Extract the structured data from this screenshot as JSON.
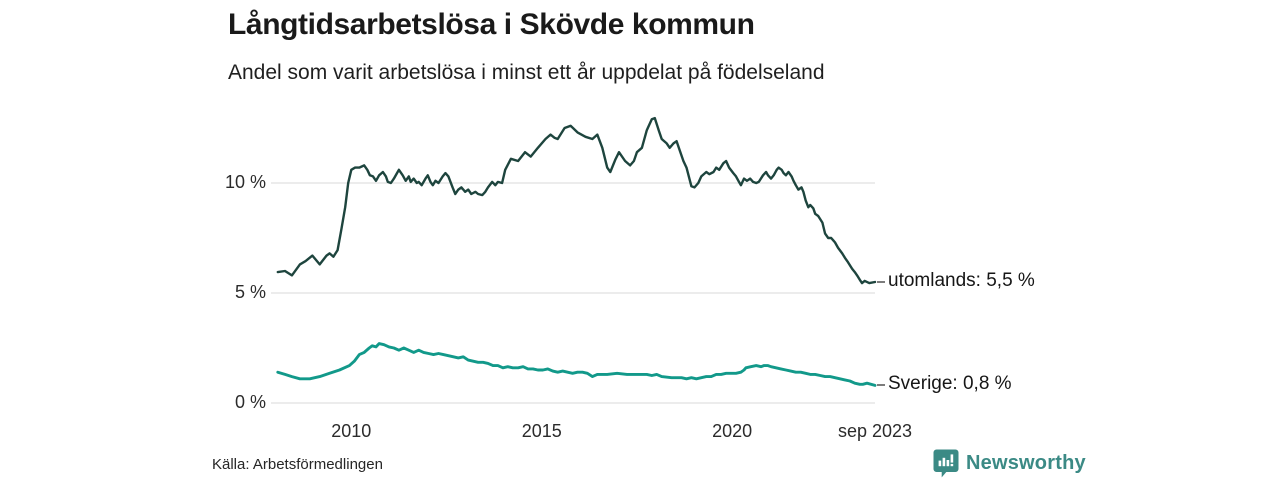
{
  "chart_data": {
    "type": "line",
    "title": "Långtidsarbetslösa i Skövde kommun",
    "subtitle": "Andel som varit arbetslösa i minst ett år uppdelat på födelseland",
    "source": "Källa: Arbetsförmedlingen",
    "unit": "%",
    "grid": "horizontal-only",
    "legend_position": "end-of-line",
    "xlim": [
      2008.05,
      2023.75
    ],
    "ylim": [
      0,
      13
    ],
    "x_ticks": [
      {
        "value": 2010,
        "label": "2010"
      },
      {
        "value": 2015,
        "label": "2015"
      },
      {
        "value": 2020,
        "label": "2020"
      },
      {
        "value": 2023.75,
        "label": "sep 2023"
      }
    ],
    "y_ticks": [
      {
        "value": 0,
        "label": "0 %"
      },
      {
        "value": 5,
        "label": "5 %"
      },
      {
        "value": 10,
        "label": "10 %"
      }
    ],
    "series": [
      {
        "name": "utomlands",
        "end_label": "utomlands: 5,5 %",
        "last_value": "5,5 %",
        "color": "#1e453e",
        "points": [
          [
            2008.07,
            5.95
          ],
          [
            2008.26,
            6.0
          ],
          [
            2008.44,
            5.8
          ],
          [
            2008.65,
            6.3
          ],
          [
            2008.8,
            6.45
          ],
          [
            2008.98,
            6.7
          ],
          [
            2009.17,
            6.3
          ],
          [
            2009.35,
            6.7
          ],
          [
            2009.43,
            6.8
          ],
          [
            2009.53,
            6.65
          ],
          [
            2009.64,
            6.95
          ],
          [
            2009.74,
            7.9
          ],
          [
            2009.84,
            8.9
          ],
          [
            2009.92,
            10.0
          ],
          [
            2010.0,
            10.6
          ],
          [
            2010.1,
            10.7
          ],
          [
            2010.21,
            10.7
          ],
          [
            2010.34,
            10.8
          ],
          [
            2010.42,
            10.6
          ],
          [
            2010.49,
            10.35
          ],
          [
            2010.57,
            10.3
          ],
          [
            2010.65,
            10.1
          ],
          [
            2010.73,
            10.35
          ],
          [
            2010.83,
            10.5
          ],
          [
            2010.91,
            10.3
          ],
          [
            2010.96,
            10.05
          ],
          [
            2011.04,
            10.0
          ],
          [
            2011.12,
            10.2
          ],
          [
            2011.2,
            10.45
          ],
          [
            2011.25,
            10.6
          ],
          [
            2011.35,
            10.35
          ],
          [
            2011.43,
            10.1
          ],
          [
            2011.51,
            10.3
          ],
          [
            2011.56,
            10.05
          ],
          [
            2011.64,
            10.2
          ],
          [
            2011.72,
            10.0
          ],
          [
            2011.77,
            10.05
          ],
          [
            2011.85,
            9.9
          ],
          [
            2011.95,
            10.2
          ],
          [
            2012.01,
            10.35
          ],
          [
            2012.08,
            10.05
          ],
          [
            2012.14,
            9.9
          ],
          [
            2012.21,
            10.1
          ],
          [
            2012.29,
            10.0
          ],
          [
            2012.4,
            10.3
          ],
          [
            2012.47,
            10.45
          ],
          [
            2012.55,
            10.3
          ],
          [
            2012.66,
            9.8
          ],
          [
            2012.73,
            9.5
          ],
          [
            2012.81,
            9.7
          ],
          [
            2012.89,
            9.8
          ],
          [
            2012.99,
            9.6
          ],
          [
            2013.07,
            9.7
          ],
          [
            2013.15,
            9.5
          ],
          [
            2013.26,
            9.6
          ],
          [
            2013.33,
            9.5
          ],
          [
            2013.44,
            9.45
          ],
          [
            2013.52,
            9.6
          ],
          [
            2013.59,
            9.8
          ],
          [
            2013.7,
            10.05
          ],
          [
            2013.78,
            9.9
          ],
          [
            2013.85,
            10.05
          ],
          [
            2013.96,
            10.0
          ],
          [
            2014.04,
            10.6
          ],
          [
            2014.19,
            11.1
          ],
          [
            2014.38,
            11.0
          ],
          [
            2014.56,
            11.4
          ],
          [
            2014.71,
            11.2
          ],
          [
            2014.9,
            11.6
          ],
          [
            2015.1,
            12.0
          ],
          [
            2015.23,
            12.2
          ],
          [
            2015.34,
            12.05
          ],
          [
            2015.42,
            12.0
          ],
          [
            2015.6,
            12.5
          ],
          [
            2015.76,
            12.6
          ],
          [
            2015.94,
            12.3
          ],
          [
            2016.15,
            12.1
          ],
          [
            2016.33,
            12.0
          ],
          [
            2016.46,
            12.2
          ],
          [
            2016.59,
            11.6
          ],
          [
            2016.72,
            10.7
          ],
          [
            2016.8,
            10.5
          ],
          [
            2016.93,
            11.05
          ],
          [
            2017.03,
            11.4
          ],
          [
            2017.19,
            11.0
          ],
          [
            2017.32,
            10.8
          ],
          [
            2017.42,
            11.0
          ],
          [
            2017.5,
            11.4
          ],
          [
            2017.63,
            11.6
          ],
          [
            2017.76,
            12.4
          ],
          [
            2017.89,
            12.9
          ],
          [
            2017.97,
            12.95
          ],
          [
            2018.07,
            12.4
          ],
          [
            2018.15,
            12.0
          ],
          [
            2018.28,
            11.8
          ],
          [
            2018.36,
            11.6
          ],
          [
            2018.46,
            11.8
          ],
          [
            2018.54,
            11.9
          ],
          [
            2018.62,
            11.5
          ],
          [
            2018.72,
            11.0
          ],
          [
            2018.8,
            10.7
          ],
          [
            2018.93,
            9.85
          ],
          [
            2019.01,
            9.8
          ],
          [
            2019.11,
            10.0
          ],
          [
            2019.19,
            10.3
          ],
          [
            2019.32,
            10.5
          ],
          [
            2019.4,
            10.4
          ],
          [
            2019.51,
            10.5
          ],
          [
            2019.58,
            10.7
          ],
          [
            2019.66,
            10.6
          ],
          [
            2019.77,
            10.9
          ],
          [
            2019.84,
            11.0
          ],
          [
            2019.92,
            10.7
          ],
          [
            2020.03,
            10.45
          ],
          [
            2020.1,
            10.3
          ],
          [
            2020.18,
            10.05
          ],
          [
            2020.23,
            9.9
          ],
          [
            2020.31,
            10.2
          ],
          [
            2020.39,
            10.1
          ],
          [
            2020.47,
            10.2
          ],
          [
            2020.55,
            10.05
          ],
          [
            2020.63,
            10.0
          ],
          [
            2020.7,
            10.05
          ],
          [
            2020.81,
            10.35
          ],
          [
            2020.89,
            10.5
          ],
          [
            2020.94,
            10.35
          ],
          [
            2021.02,
            10.2
          ],
          [
            2021.09,
            10.35
          ],
          [
            2021.17,
            10.6
          ],
          [
            2021.22,
            10.7
          ],
          [
            2021.3,
            10.6
          ],
          [
            2021.35,
            10.45
          ],
          [
            2021.41,
            10.35
          ],
          [
            2021.48,
            10.5
          ],
          [
            2021.56,
            10.3
          ],
          [
            2021.61,
            10.1
          ],
          [
            2021.67,
            9.9
          ],
          [
            2021.74,
            9.7
          ],
          [
            2021.82,
            9.8
          ],
          [
            2021.87,
            9.6
          ],
          [
            2021.93,
            9.2
          ],
          [
            2022.0,
            8.9
          ],
          [
            2022.05,
            9.0
          ],
          [
            2022.13,
            8.85
          ],
          [
            2022.18,
            8.6
          ],
          [
            2022.26,
            8.5
          ],
          [
            2022.37,
            8.2
          ],
          [
            2022.44,
            7.7
          ],
          [
            2022.52,
            7.5
          ],
          [
            2022.6,
            7.5
          ],
          [
            2022.65,
            7.4
          ],
          [
            2022.7,
            7.3
          ],
          [
            2022.78,
            7.05
          ],
          [
            2022.89,
            6.8
          ],
          [
            2022.96,
            6.6
          ],
          [
            2023.04,
            6.4
          ],
          [
            2023.15,
            6.1
          ],
          [
            2023.22,
            5.95
          ],
          [
            2023.28,
            5.8
          ],
          [
            2023.35,
            5.6
          ],
          [
            2023.41,
            5.45
          ],
          [
            2023.48,
            5.55
          ],
          [
            2023.6,
            5.45
          ],
          [
            2023.75,
            5.5
          ]
        ]
      },
      {
        "name": "Sverige",
        "end_label": "Sverige: 0,8 %",
        "last_value": "0,8 %",
        "color": "#12998a",
        "points": [
          [
            2008.07,
            1.4
          ],
          [
            2008.26,
            1.3
          ],
          [
            2008.44,
            1.2
          ],
          [
            2008.65,
            1.1
          ],
          [
            2008.91,
            1.1
          ],
          [
            2009.17,
            1.2
          ],
          [
            2009.43,
            1.35
          ],
          [
            2009.69,
            1.5
          ],
          [
            2009.95,
            1.7
          ],
          [
            2010.08,
            1.9
          ],
          [
            2010.21,
            2.2
          ],
          [
            2010.34,
            2.3
          ],
          [
            2010.47,
            2.5
          ],
          [
            2010.55,
            2.6
          ],
          [
            2010.65,
            2.55
          ],
          [
            2010.73,
            2.7
          ],
          [
            2010.86,
            2.65
          ],
          [
            2010.99,
            2.55
          ],
          [
            2011.12,
            2.5
          ],
          [
            2011.25,
            2.4
          ],
          [
            2011.38,
            2.5
          ],
          [
            2011.51,
            2.4
          ],
          [
            2011.64,
            2.3
          ],
          [
            2011.77,
            2.4
          ],
          [
            2011.9,
            2.3
          ],
          [
            2012.03,
            2.25
          ],
          [
            2012.16,
            2.2
          ],
          [
            2012.29,
            2.25
          ],
          [
            2012.42,
            2.2
          ],
          [
            2012.55,
            2.15
          ],
          [
            2012.68,
            2.1
          ],
          [
            2012.81,
            2.05
          ],
          [
            2012.94,
            2.1
          ],
          [
            2013.07,
            1.95
          ],
          [
            2013.2,
            1.9
          ],
          [
            2013.33,
            1.85
          ],
          [
            2013.46,
            1.85
          ],
          [
            2013.59,
            1.8
          ],
          [
            2013.72,
            1.7
          ],
          [
            2013.85,
            1.7
          ],
          [
            2013.98,
            1.6
          ],
          [
            2014.11,
            1.65
          ],
          [
            2014.24,
            1.6
          ],
          [
            2014.38,
            1.6
          ],
          [
            2014.51,
            1.65
          ],
          [
            2014.64,
            1.55
          ],
          [
            2014.77,
            1.55
          ],
          [
            2014.9,
            1.5
          ],
          [
            2015.03,
            1.5
          ],
          [
            2015.16,
            1.55
          ],
          [
            2015.29,
            1.45
          ],
          [
            2015.42,
            1.4
          ],
          [
            2015.55,
            1.45
          ],
          [
            2015.68,
            1.4
          ],
          [
            2015.81,
            1.35
          ],
          [
            2015.94,
            1.4
          ],
          [
            2016.07,
            1.4
          ],
          [
            2016.2,
            1.35
          ],
          [
            2016.33,
            1.2
          ],
          [
            2016.46,
            1.3
          ],
          [
            2016.72,
            1.3
          ],
          [
            2016.98,
            1.35
          ],
          [
            2017.24,
            1.3
          ],
          [
            2017.5,
            1.3
          ],
          [
            2017.76,
            1.3
          ],
          [
            2017.89,
            1.25
          ],
          [
            2018.02,
            1.3
          ],
          [
            2018.15,
            1.2
          ],
          [
            2018.41,
            1.15
          ],
          [
            2018.67,
            1.15
          ],
          [
            2018.8,
            1.1
          ],
          [
            2018.93,
            1.15
          ],
          [
            2019.06,
            1.1
          ],
          [
            2019.19,
            1.15
          ],
          [
            2019.32,
            1.2
          ],
          [
            2019.45,
            1.2
          ],
          [
            2019.58,
            1.3
          ],
          [
            2019.71,
            1.3
          ],
          [
            2019.84,
            1.35
          ],
          [
            2019.97,
            1.35
          ],
          [
            2020.1,
            1.35
          ],
          [
            2020.23,
            1.4
          ],
          [
            2020.31,
            1.5
          ],
          [
            2020.36,
            1.6
          ],
          [
            2020.49,
            1.65
          ],
          [
            2020.63,
            1.7
          ],
          [
            2020.76,
            1.65
          ],
          [
            2020.83,
            1.7
          ],
          [
            2020.94,
            1.7
          ],
          [
            2021.02,
            1.65
          ],
          [
            2021.15,
            1.6
          ],
          [
            2021.28,
            1.55
          ],
          [
            2021.41,
            1.5
          ],
          [
            2021.54,
            1.45
          ],
          [
            2021.67,
            1.4
          ],
          [
            2021.8,
            1.4
          ],
          [
            2021.93,
            1.35
          ],
          [
            2022.05,
            1.3
          ],
          [
            2022.18,
            1.3
          ],
          [
            2022.31,
            1.25
          ],
          [
            2022.44,
            1.2
          ],
          [
            2022.57,
            1.2
          ],
          [
            2022.7,
            1.15
          ],
          [
            2022.83,
            1.1
          ],
          [
            2022.96,
            1.05
          ],
          [
            2023.09,
            1.0
          ],
          [
            2023.22,
            0.9
          ],
          [
            2023.35,
            0.85
          ],
          [
            2023.43,
            0.85
          ],
          [
            2023.54,
            0.9
          ],
          [
            2023.75,
            0.8
          ]
        ]
      }
    ]
  },
  "branding": {
    "name": "Newsworthy",
    "color": "#3b8a85",
    "icon": "newsworthy-logo-icon"
  },
  "colors": {
    "background": "#ffffff",
    "grid": "#e6e6e6",
    "title_text": "#1a1a1a",
    "axis_text": "#2b2b2b"
  }
}
